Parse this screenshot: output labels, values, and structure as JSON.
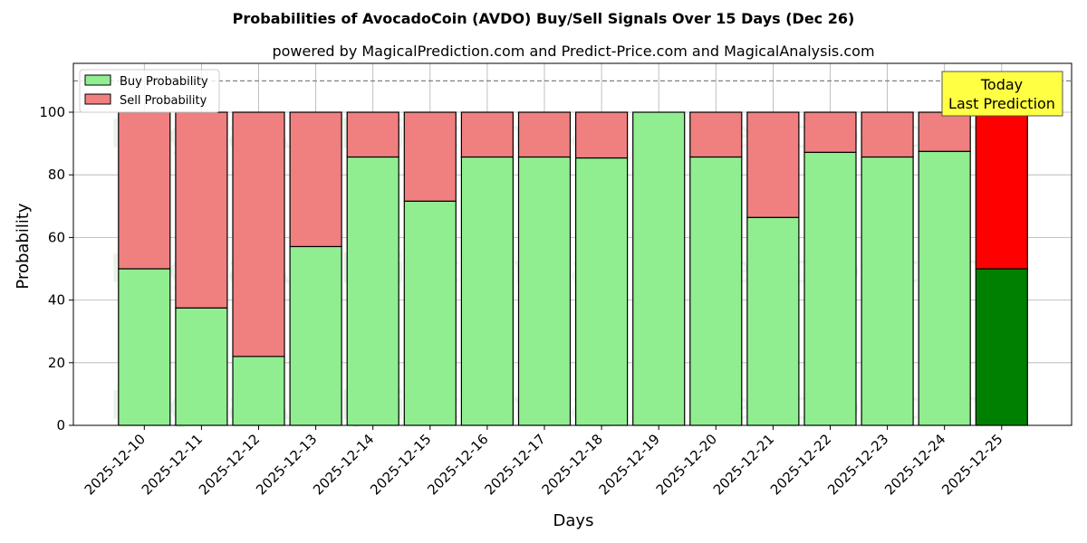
{
  "chart_data": {
    "type": "bar",
    "stacked": true,
    "title": "Probabilities of AvocadoCoin (AVDO) Buy/Sell Signals Over 15 Days (Dec 26)",
    "subtitle": "powered by MagicalPrediction.com and Predict-Price.com and MagicalAnalysis.com",
    "xlabel": "Days",
    "ylabel": "Probability",
    "ylim": [
      0,
      115
    ],
    "yticks": [
      0,
      20,
      40,
      60,
      80,
      100
    ],
    "grid": true,
    "reference_line": {
      "y": 110,
      "style": "dashed",
      "color": "#808080"
    },
    "legend": {
      "position": "upper left",
      "entries": [
        "Buy Probability",
        "Sell Probability"
      ]
    },
    "categories": [
      "2025-12-10",
      "2025-12-11",
      "2025-12-12",
      "2025-12-13",
      "2025-12-14",
      "2025-12-15",
      "2025-12-16",
      "2025-12-17",
      "2025-12-18",
      "2025-12-19",
      "2025-12-20",
      "2025-12-21",
      "2025-12-22",
      "2025-12-23",
      "2025-12-24",
      "2025-12-25"
    ],
    "series": [
      {
        "name": "Buy Probability",
        "color": "#90ee90",
        "values": [
          50.0,
          37.5,
          22.0,
          57.1,
          85.7,
          71.6,
          85.7,
          85.7,
          85.4,
          100.0,
          85.7,
          66.4,
          87.2,
          85.7,
          87.5,
          50.0
        ]
      },
      {
        "name": "Sell Probability",
        "color": "#f08080",
        "values": [
          50.0,
          62.5,
          78.0,
          42.9,
          14.3,
          28.4,
          14.3,
          14.3,
          14.6,
          0.0,
          14.3,
          33.6,
          12.8,
          14.3,
          12.5,
          50.0
        ]
      }
    ],
    "highlight": {
      "index": 15,
      "buy_color": "#008000",
      "sell_color": "#ff0000"
    },
    "annotation": {
      "line1": "Today",
      "line2": "Last Prediction",
      "bg": "#ffff44"
    },
    "watermarks": [
      "MagicalAnalysis.com",
      "MagicalPrediction.com"
    ]
  }
}
